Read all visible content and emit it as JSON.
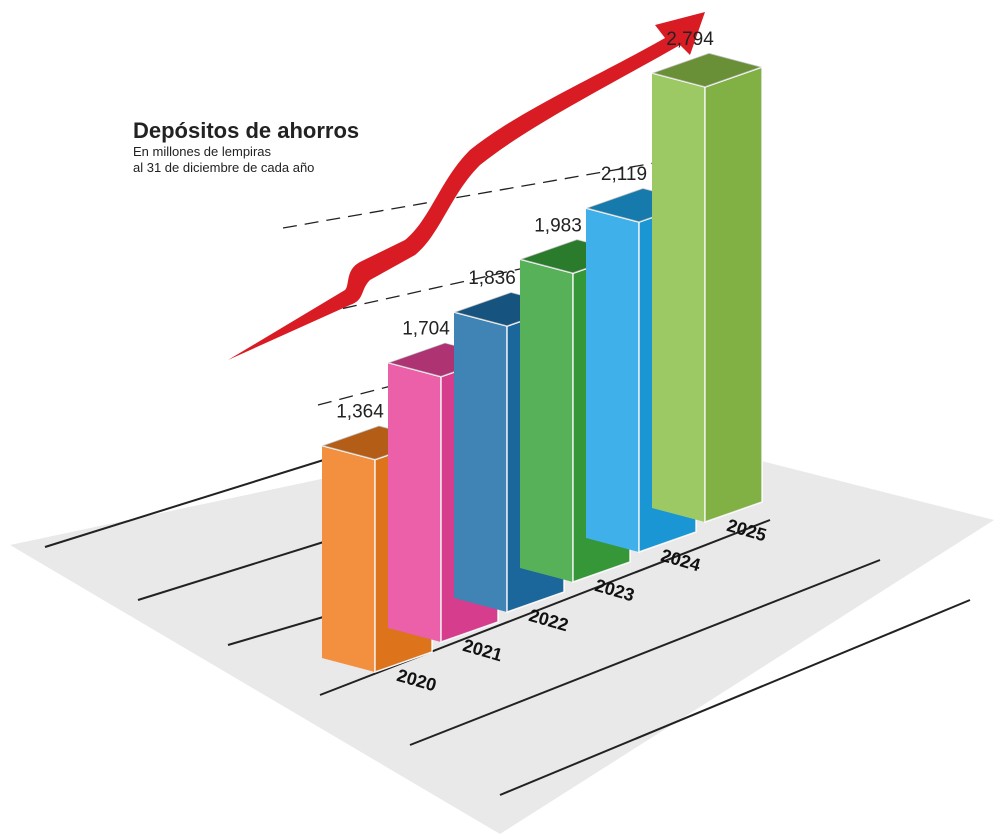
{
  "chart_data": {
    "type": "bar",
    "title": "Depósitos de ahorros",
    "subtitle": [
      "En millones de lempiras",
      "al 31 de diciembre de cada año"
    ],
    "categories": [
      "2020",
      "2021",
      "2022",
      "2023",
      "2024",
      "2025"
    ],
    "values": [
      1364,
      1704,
      1836,
      1983,
      2119,
      2794
    ],
    "value_labels": [
      "1,364",
      "1,704",
      "1,836",
      "1,983",
      "2,119",
      "2,794"
    ],
    "colors": [
      "#f07d1e",
      "#e9449a",
      "#1e6fa8",
      "#3aa43c",
      "#1ea3e6",
      "#8cc04a"
    ]
  }
}
